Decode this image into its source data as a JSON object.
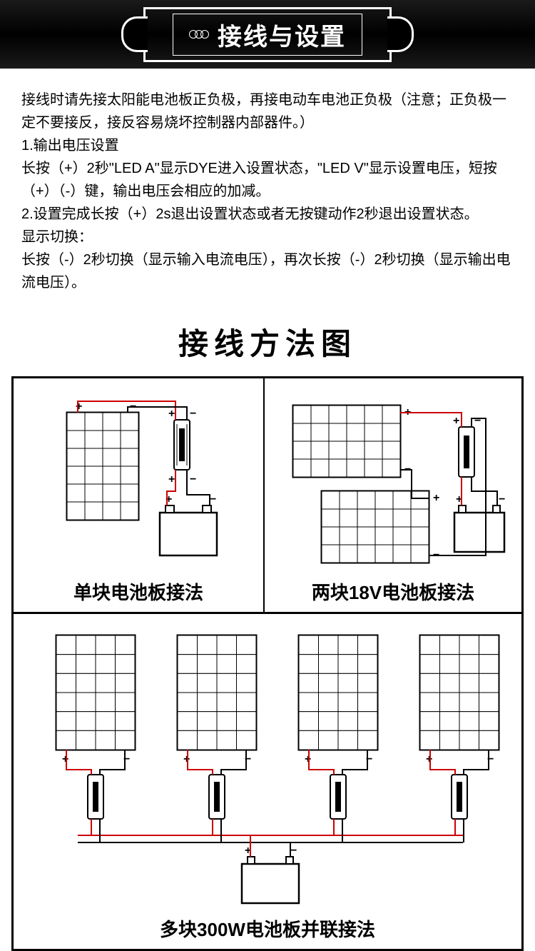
{
  "banner": {
    "title": "接线与设置"
  },
  "instructions": {
    "p1": "接线时请先接太阳能电池板正负极，再接电动车电池正负极（注意；正负极一定不要接反，接反容易烧坏控制器内部器件。）",
    "p2": "1.输出电压设置",
    "p3": "长按（+）2秒\"LED  A\"显示DYE进入设置状态，\"LED  V\"显示设置电压，短按（+）（-）键，输出电压会相应的加减。",
    "p4": "2.设置完成长按（+）2s退出设置状态或者无按键动作2秒退出设置状态。",
    "p5": "显示切换：",
    "p6": "长按（-）2秒切换（显示输入电流电压），再次长按（-）2秒切换（显示输出电流电压）。"
  },
  "wiring_diagram": {
    "title": "接线方法图",
    "cell1": {
      "caption": "单块电池板接法"
    },
    "cell2": {
      "caption": "两块18V电池板接法"
    },
    "cell3": {
      "caption": "多块300W电池板并联接法"
    },
    "colors": {
      "wire_pos": "#cc0000",
      "wire_neg": "#000000",
      "stroke": "#000000",
      "bg": "#ffffff"
    },
    "panel": {
      "cols": 4,
      "rows": 6
    },
    "labels": {
      "plus": "+",
      "minus": "−"
    }
  }
}
